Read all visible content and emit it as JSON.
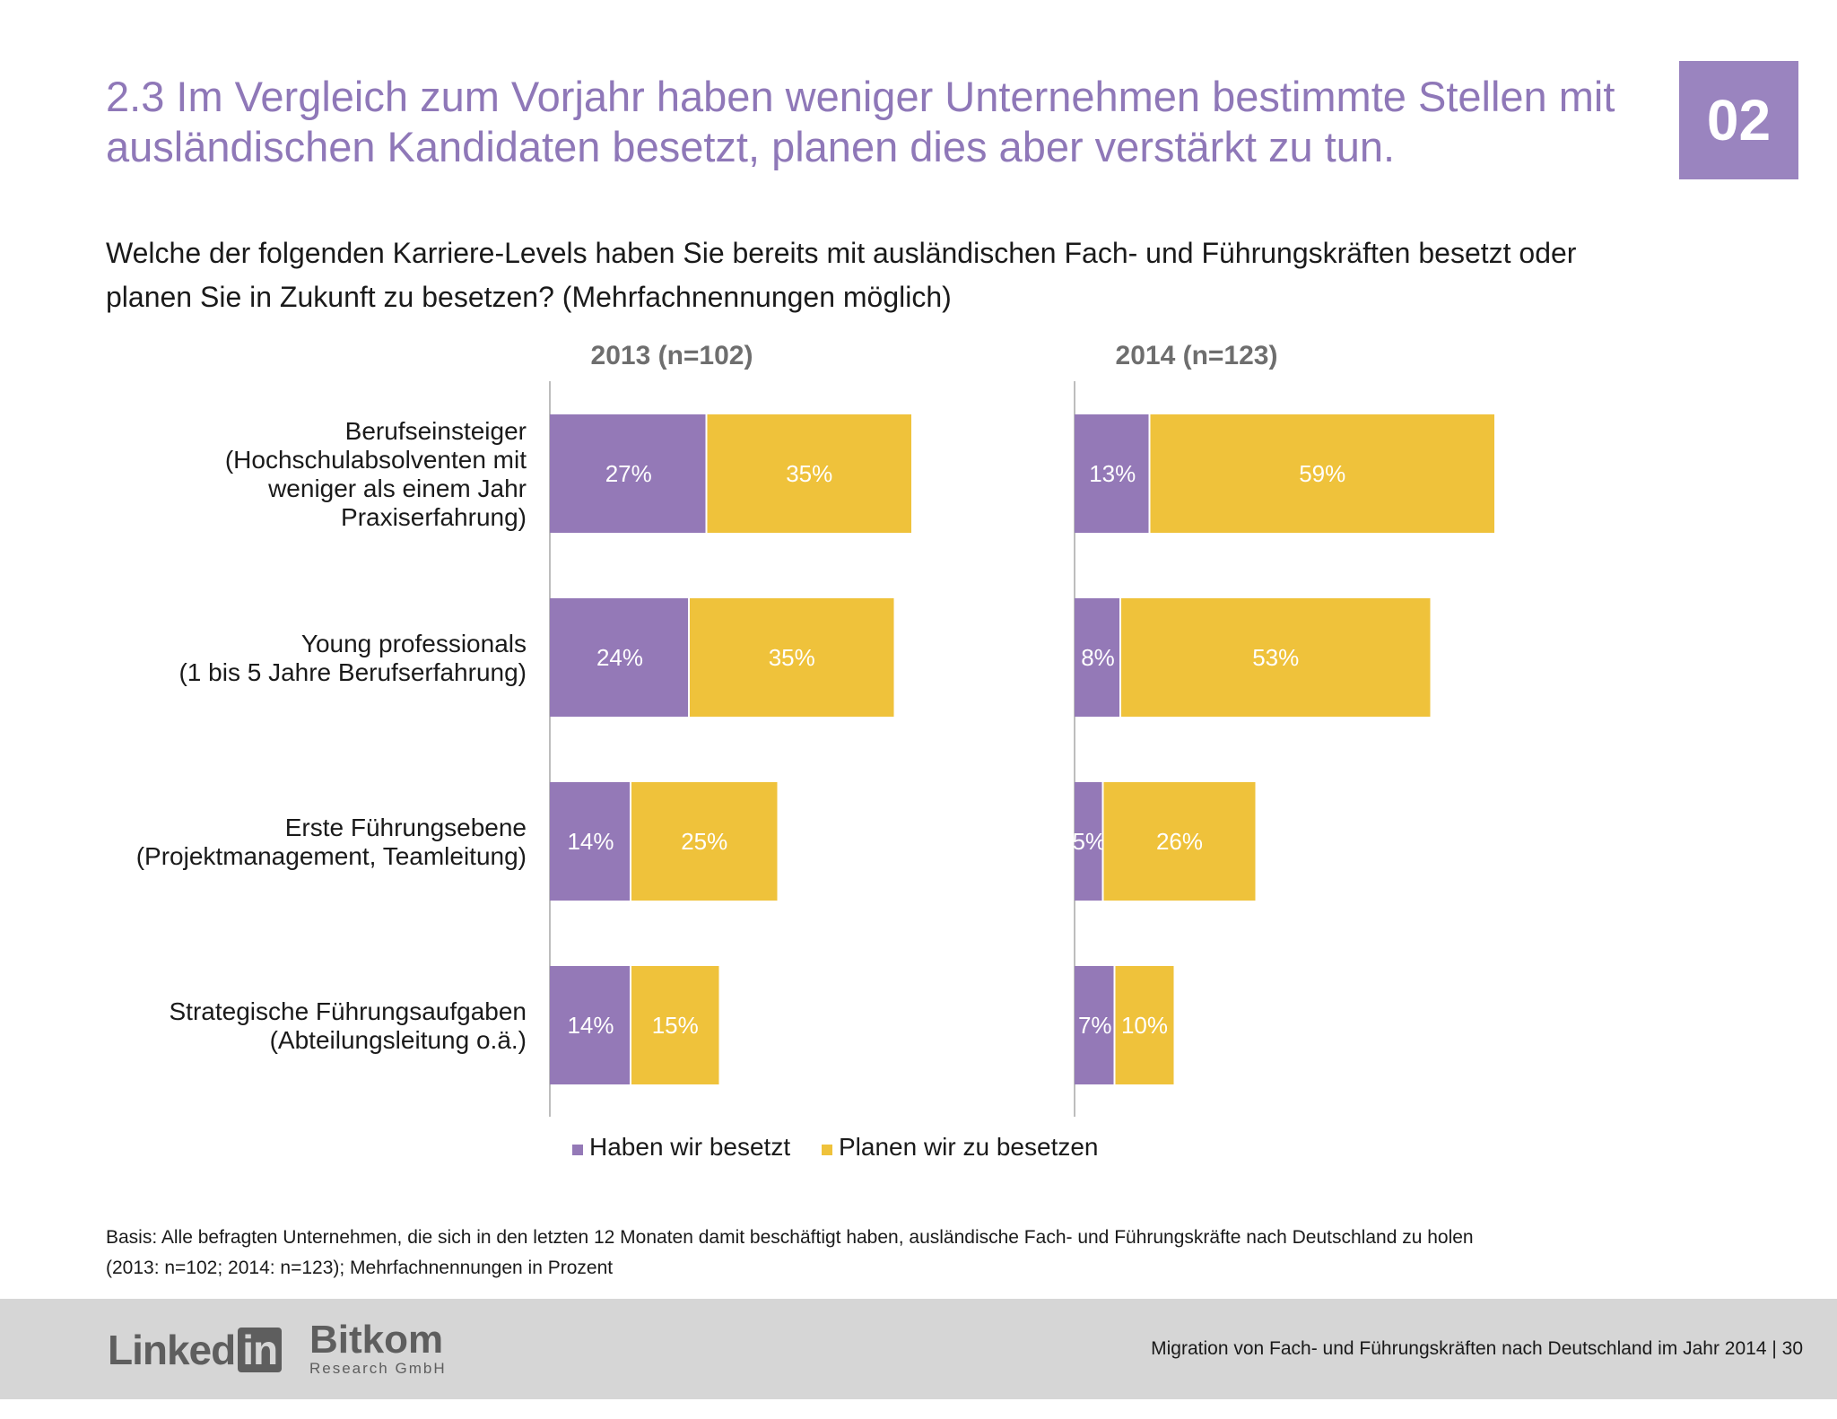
{
  "headline": {
    "line1": "2.3 Im Vergleich zum Vorjahr haben weniger Unternehmen bestimmte Stellen mit",
    "line2": "ausländischen Kandidaten besetzt, planen dies aber verstärkt zu tun."
  },
  "badge": "02",
  "question": {
    "line1": "Welche der folgenden Karriere-Levels haben Sie bereits mit ausländischen Fach- und Führungskräften besetzt oder",
    "line2": "planen Sie in Zukunft zu besetzen? (Mehrfachnennungen möglich)"
  },
  "colors": {
    "filled": "#9479b7",
    "planned": "#efc23b"
  },
  "chart_data": {
    "type": "bar",
    "orientation": "horizontal",
    "stacked": true,
    "categories": [
      [
        "Berufseinsteiger",
        "(Hochschulabsolventen mit",
        "weniger als einem Jahr",
        "Praxiserfahrung)"
      ],
      [
        "Young professionals",
        "(1 bis 5 Jahre Berufserfahrung)"
      ],
      [
        "Erste Führungsebene",
        "(Projektmanagement, Teamleitung)"
      ],
      [
        "Strategische Führungsaufgaben",
        "(Abteilungsleitung o.ä.)"
      ]
    ],
    "legend": {
      "position": "bottom",
      "entries": [
        "Haben wir besetzt",
        "Planen wir zu besetzen"
      ]
    },
    "panels": [
      {
        "title": "2013 (n=102)",
        "series": [
          {
            "name": "Haben wir besetzt",
            "values": [
              27,
              24,
              14,
              14
            ]
          },
          {
            "name": "Planen wir zu besetzen",
            "values": [
              35,
              35,
              25,
              15
            ]
          }
        ]
      },
      {
        "title": "2014 (n=123)",
        "series": [
          {
            "name": "Haben wir besetzt",
            "values": [
              13,
              8,
              5,
              7
            ]
          },
          {
            "name": "Planen wir zu besetzen",
            "values": [
              59,
              53,
              26,
              10
            ]
          }
        ]
      }
    ],
    "value_suffix": "%"
  },
  "basis": {
    "line1": "Basis: Alle befragten Unternehmen, die sich in den letzten 12 Monaten damit beschäftigt haben, ausländische Fach- und Führungskräfte nach Deutschland zu holen",
    "line2": "(2013: n=102; 2014: n=123); Mehrfachnennungen in Prozent"
  },
  "footer": {
    "text": "Migration von Fach- und Führungskräften nach Deutschland im Jahr 2014  |  30",
    "logo_linkedin_text": "Linked",
    "logo_linkedin_box": "in",
    "logo_bitkom": "Bitkom",
    "logo_bitkom_sub": "Research GmbH"
  }
}
